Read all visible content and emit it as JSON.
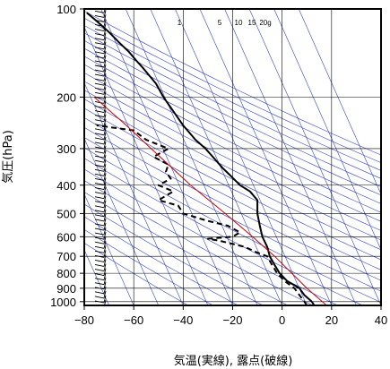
{
  "chart_data": {
    "type": "skew-t",
    "xlabel": "気温(実線), 露点(破線)",
    "ylabel": "気圧(hPa)",
    "xlim": [
      -80,
      40
    ],
    "ylim": [
      1030,
      100
    ],
    "y_scale": "log",
    "x_ticks": [
      "−80",
      "−60",
      "−40",
      "−20",
      "0",
      "20",
      "40"
    ],
    "x_tick_values": [
      -80,
      -60,
      -40,
      -20,
      0,
      20,
      40
    ],
    "y_ticks": [
      "100",
      "200",
      "300",
      "400",
      "500",
      "600",
      "700",
      "800",
      "900",
      "1000"
    ],
    "y_tick_values": [
      100,
      200,
      300,
      400,
      500,
      600,
      700,
      800,
      900,
      1000
    ],
    "mixing_ratio_labels": [
      "1",
      "5",
      "10",
      "15",
      "20g"
    ],
    "mixing_ratio_values": [
      1,
      5,
      10,
      15,
      20
    ],
    "grid": true,
    "colors": {
      "temperature": "#000000",
      "dewpoint": "#000000",
      "parcel": "#cc0000",
      "reference_lines": "#3344cc",
      "grid": "#000000"
    },
    "series": [
      {
        "role": "temperature",
        "style": "solid",
        "points": [
          {
            "p": 1030,
            "t": 13
          },
          {
            "p": 1000,
            "t": 12
          },
          {
            "p": 950,
            "t": 9
          },
          {
            "p": 900,
            "t": 7
          },
          {
            "p": 850,
            "t": 2
          },
          {
            "p": 800,
            "t": -1
          },
          {
            "p": 750,
            "t": -3
          },
          {
            "p": 700,
            "t": -5
          },
          {
            "p": 650,
            "t": -6
          },
          {
            "p": 600,
            "t": -8
          },
          {
            "p": 550,
            "t": -9
          },
          {
            "p": 500,
            "t": -10
          },
          {
            "p": 450,
            "t": -10
          },
          {
            "p": 420,
            "t": -13
          },
          {
            "p": 400,
            "t": -17
          },
          {
            "p": 370,
            "t": -21
          },
          {
            "p": 350,
            "t": -24
          },
          {
            "p": 320,
            "t": -28
          },
          {
            "p": 300,
            "t": -31
          },
          {
            "p": 280,
            "t": -35
          },
          {
            "p": 250,
            "t": -40
          },
          {
            "p": 230,
            "t": -43
          },
          {
            "p": 200,
            "t": -48
          },
          {
            "p": 180,
            "t": -51
          },
          {
            "p": 160,
            "t": -56
          },
          {
            "p": 150,
            "t": -59
          },
          {
            "p": 140,
            "t": -62
          },
          {
            "p": 130,
            "t": -66
          },
          {
            "p": 120,
            "t": -70
          },
          {
            "p": 110,
            "t": -75
          },
          {
            "p": 103,
            "t": -79
          }
        ]
      },
      {
        "role": "dewpoint",
        "style": "dashed",
        "points": [
          {
            "p": 1030,
            "t": 10
          },
          {
            "p": 1000,
            "t": 9
          },
          {
            "p": 950,
            "t": 7
          },
          {
            "p": 900,
            "t": 5
          },
          {
            "p": 850,
            "t": 1
          },
          {
            "p": 800,
            "t": -2
          },
          {
            "p": 750,
            "t": -4
          },
          {
            "p": 700,
            "t": -6
          },
          {
            "p": 680,
            "t": -10
          },
          {
            "p": 650,
            "t": -15
          },
          {
            "p": 620,
            "t": -25
          },
          {
            "p": 610,
            "t": -30
          },
          {
            "p": 600,
            "t": -20
          },
          {
            "p": 580,
            "t": -17
          },
          {
            "p": 550,
            "t": -22
          },
          {
            "p": 530,
            "t": -30
          },
          {
            "p": 500,
            "t": -40
          },
          {
            "p": 470,
            "t": -42
          },
          {
            "p": 450,
            "t": -50
          },
          {
            "p": 420,
            "t": -44
          },
          {
            "p": 400,
            "t": -50
          },
          {
            "p": 380,
            "t": -45
          },
          {
            "p": 360,
            "t": -47
          },
          {
            "p": 340,
            "t": -46
          },
          {
            "p": 320,
            "t": -52
          },
          {
            "p": 300,
            "t": -46
          },
          {
            "p": 280,
            "t": -55
          },
          {
            "p": 260,
            "t": -60
          },
          {
            "p": 250,
            "t": -75
          }
        ]
      },
      {
        "role": "parcel",
        "style": "solid",
        "points": [
          {
            "p": 1030,
            "t": 18
          },
          {
            "p": 900,
            "t": 10
          },
          {
            "p": 700,
            "t": -3
          },
          {
            "p": 600,
            "t": -12
          },
          {
            "p": 500,
            "t": -23
          },
          {
            "p": 400,
            "t": -37
          },
          {
            "p": 300,
            "t": -53
          },
          {
            "p": 250,
            "t": -63
          },
          {
            "p": 200,
            "t": -76
          }
        ]
      }
    ],
    "wind_barbs": "present"
  }
}
